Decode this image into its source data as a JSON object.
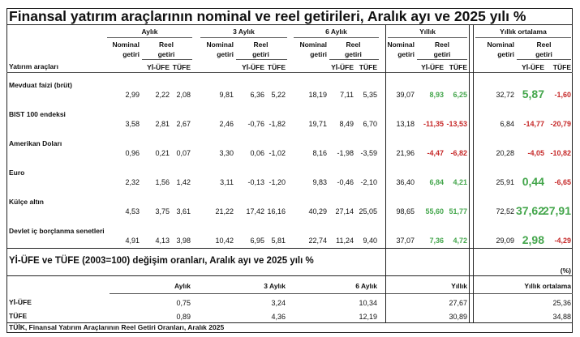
{
  "title": "Finansal yatırım araçlarının nominal ve reel getirileri, Aralık ayı ve 2025 yılı %",
  "header": {
    "groups": [
      "Aylık",
      "3 Aylık",
      "6 Aylık",
      "Yıllık",
      "Yıllık ortalama"
    ],
    "nominal_1": "Nominal",
    "nominal_2": "getiri",
    "reel_1": "Reel",
    "reel_2": "getiri",
    "yiufe": "Yİ-ÜFE",
    "tufe": "TÜFE",
    "row_label": "Yatırım araçları"
  },
  "rows": [
    {
      "name": "Mevduat faizi (brüt)",
      "values": [
        "2,99",
        "2,22",
        "2,08",
        "9,81",
        "6,36",
        "5,22",
        "18,19",
        "7,11",
        "5,35",
        "39,07",
        "8,93",
        "6,25",
        "32,72",
        "5,87",
        "-1,60"
      ]
    },
    {
      "name": "BIST 100 endeksi",
      "values": [
        "3,58",
        "2,81",
        "2,67",
        "2,46",
        "-0,76",
        "-1,82",
        "19,71",
        "8,49",
        "6,70",
        "13,18",
        "-11,35",
        "-13,53",
        "6,84",
        "-14,77",
        "-20,79"
      ]
    },
    {
      "name": "Amerikan Doları",
      "values": [
        "0,96",
        "0,21",
        "0,07",
        "3,30",
        "0,06",
        "-1,02",
        "8,16",
        "-1,98",
        "-3,59",
        "21,96",
        "-4,47",
        "-6,82",
        "20,28",
        "-4,05",
        "-10,82"
      ]
    },
    {
      "name": "Euro",
      "values": [
        "2,32",
        "1,56",
        "1,42",
        "3,11",
        "-0,13",
        "-1,20",
        "9,83",
        "-0,46",
        "-2,10",
        "36,40",
        "6,84",
        "4,21",
        "25,91",
        "0,44",
        "-6,65"
      ]
    },
    {
      "name": "Külçe altın",
      "values": [
        "4,53",
        "3,75",
        "3,61",
        "21,22",
        "17,42",
        "16,16",
        "40,29",
        "27,14",
        "25,05",
        "98,65",
        "55,60",
        "51,77",
        "72,52",
        "37,62",
        "27,91"
      ]
    },
    {
      "name": "Devlet iç borçlanma senetleri",
      "values": [
        "4,91",
        "4,13",
        "3,98",
        "10,42",
        "6,95",
        "5,81",
        "22,74",
        "11,24",
        "9,40",
        "37,07",
        "7,36",
        "4,72",
        "29,09",
        "2,98",
        "-4,29"
      ]
    }
  ],
  "inflation": {
    "title": "Yİ-ÜFE ve TÜFE (2003=100) değişim oranları, Aralık ayı ve 2025 yılı %",
    "unit": "(%)",
    "columns": [
      "Aylık",
      "3 Aylık",
      "6 Aylık",
      "Yıllık",
      "Yıllık ortalama"
    ],
    "rows": [
      {
        "name": "Yİ-ÜFE",
        "values": [
          "0,75",
          "3,24",
          "10,34",
          "27,67",
          "25,36"
        ]
      },
      {
        "name": "TÜFE",
        "values": [
          "0,89",
          "4,36",
          "12,19",
          "30,89",
          "34,88"
        ]
      }
    ]
  },
  "footer": "TÜİK, Finansal Yatırım Araçlarının Reel Getiri Oranları, Aralık 2025",
  "colors": {
    "positive": "#44a64c",
    "negative": "#c62828"
  }
}
